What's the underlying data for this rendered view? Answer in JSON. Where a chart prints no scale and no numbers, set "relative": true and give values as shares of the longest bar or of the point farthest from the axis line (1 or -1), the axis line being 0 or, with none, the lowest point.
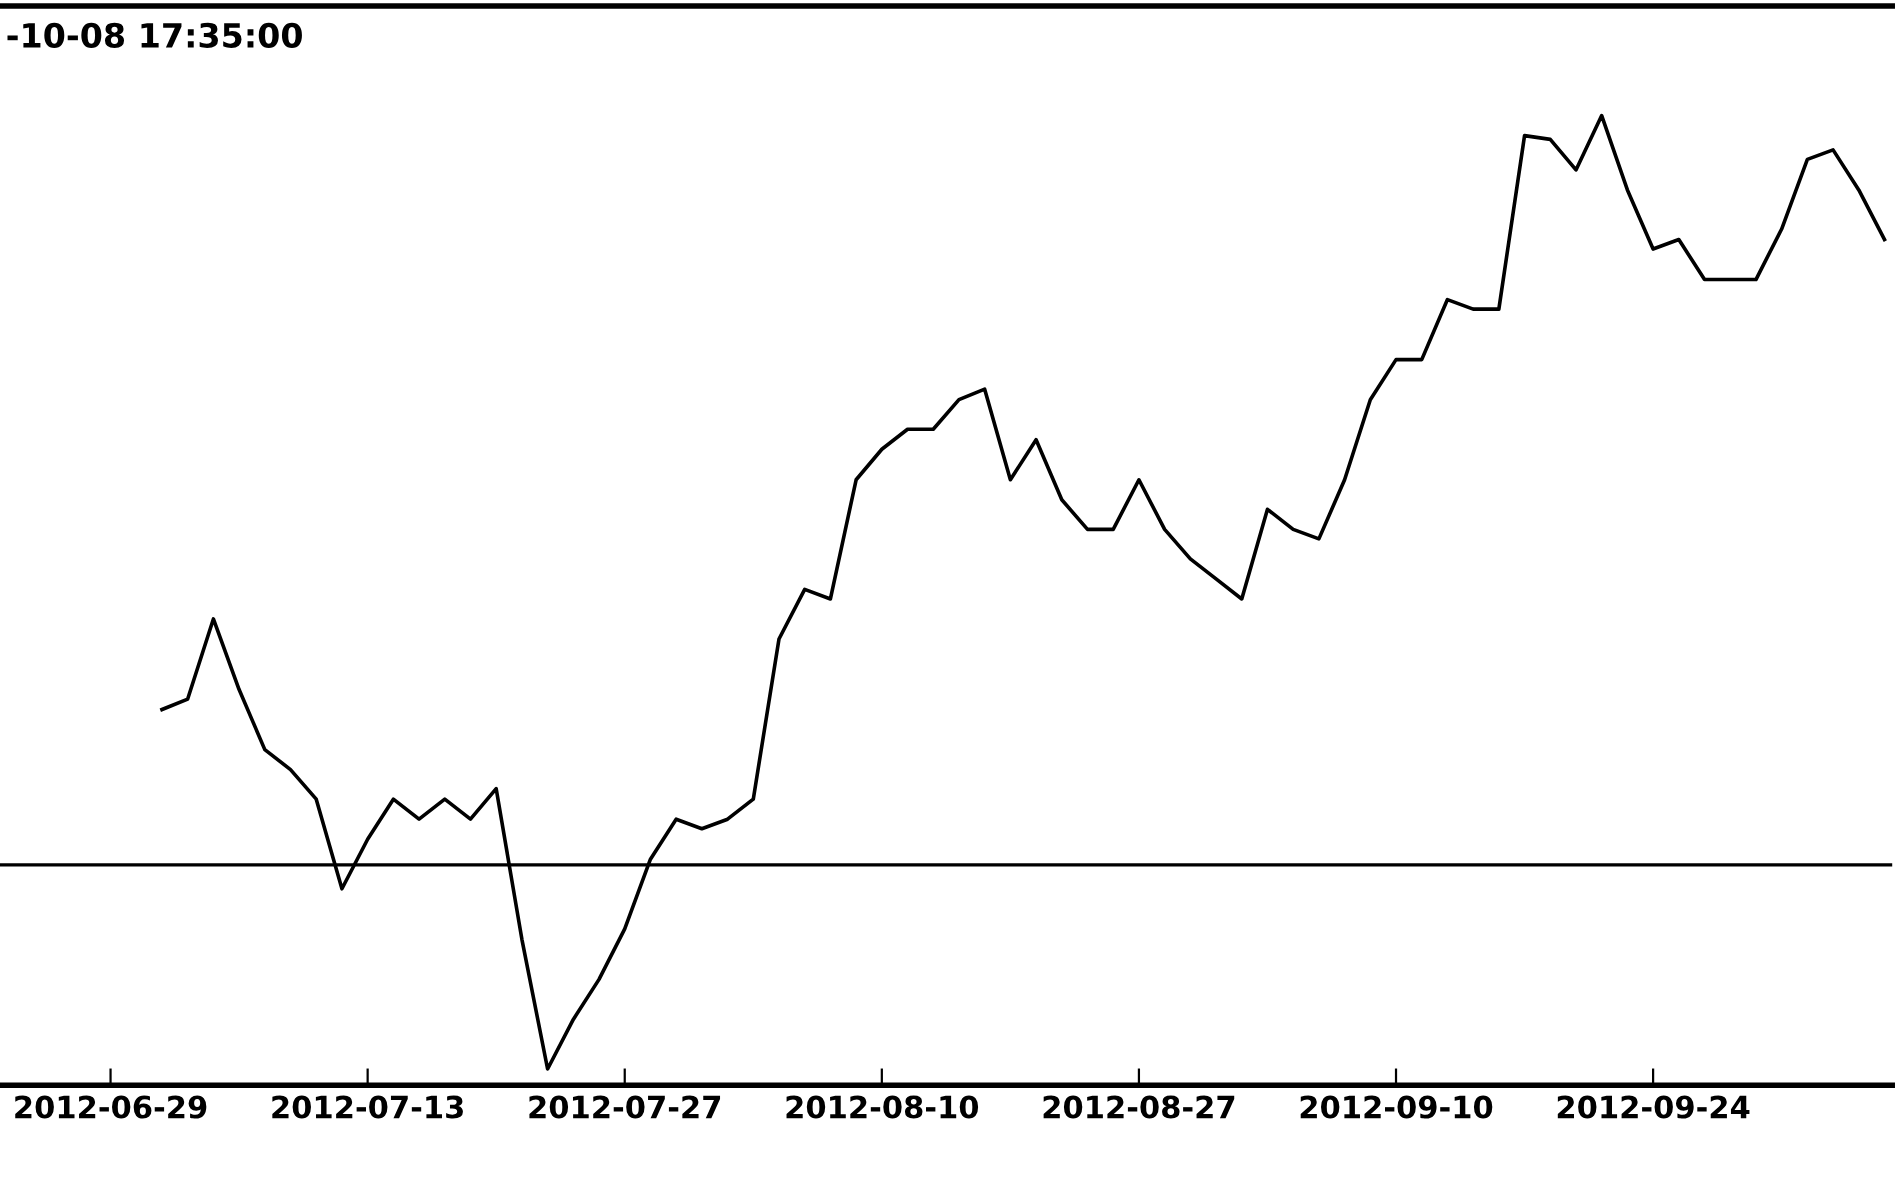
{
  "chart_data": {
    "type": "line",
    "title": "-10-08 17:35:00",
    "relative": true,
    "categories": [
      "2012-06-29",
      null,
      null,
      null,
      null,
      null,
      null,
      null,
      null,
      null,
      "2012-07-13",
      null,
      null,
      null,
      null,
      null,
      null,
      null,
      null,
      null,
      "2012-07-27",
      null,
      null,
      null,
      null,
      null,
      null,
      null,
      null,
      null,
      "2012-08-10",
      null,
      null,
      null,
      null,
      null,
      null,
      null,
      null,
      null,
      "2012-08-27",
      null,
      null,
      null,
      null,
      null,
      null,
      null,
      null,
      null,
      "2012-09-10",
      null,
      null,
      null,
      null,
      null,
      null,
      null,
      null,
      null,
      "2012-09-24",
      null,
      null,
      null,
      null,
      null,
      null,
      null,
      null,
      null
    ],
    "series": [
      {
        "color": "#000000",
        "values": [
          null,
          null,
          0.377,
          0.388,
          0.472,
          0.398,
          0.335,
          0.314,
          0.283,
          0.189,
          0.241,
          0.283,
          0.262,
          0.283,
          0.262,
          0.294,
          0.136,
          0,
          0.052,
          0.094,
          0.147,
          0.22,
          0.262,
          0.252,
          0.262,
          0.283,
          0.451,
          0.503,
          0.493,
          0.618,
          0.65,
          0.671,
          0.671,
          0.702,
          0.713,
          0.618,
          0.66,
          0.597,
          0.566,
          0.566,
          0.618,
          0.566,
          0.535,
          0.514,
          0.493,
          0.587,
          0.566,
          0.556,
          0.618,
          0.702,
          0.744,
          0.744,
          0.807,
          0.797,
          0.797,
          0.979,
          0.975,
          0.943,
          1,
          0.922,
          0.86,
          0.87,
          0.828,
          0.828,
          0.828,
          0.881,
          0.954,
          0.964,
          0.922,
          0.87
        ]
      }
    ],
    "ref_lines": [
      {
        "axis": "y",
        "value": 0.214,
        "color": "#000000"
      }
    ],
    "legend": false,
    "grid": false
  }
}
